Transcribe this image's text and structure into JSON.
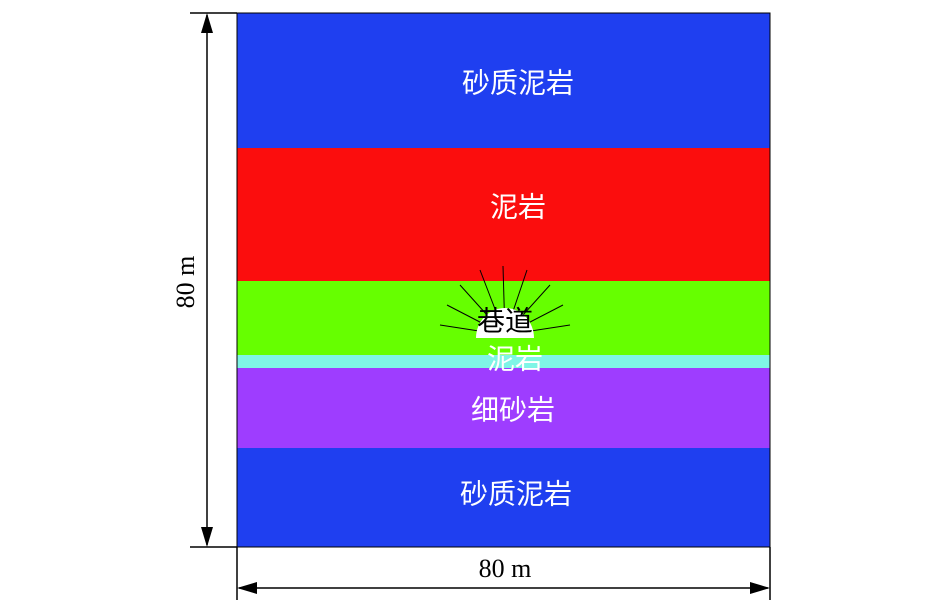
{
  "layers": [
    {
      "label": "砂质泥岩"
    },
    {
      "label": "泥岩"
    },
    {
      "label": "巷道"
    },
    {
      "label": "泥岩"
    },
    {
      "label": "细砂岩"
    },
    {
      "label": "砂质泥岩"
    }
  ],
  "dimensions": {
    "height": "80 m",
    "width": "80 m"
  }
}
